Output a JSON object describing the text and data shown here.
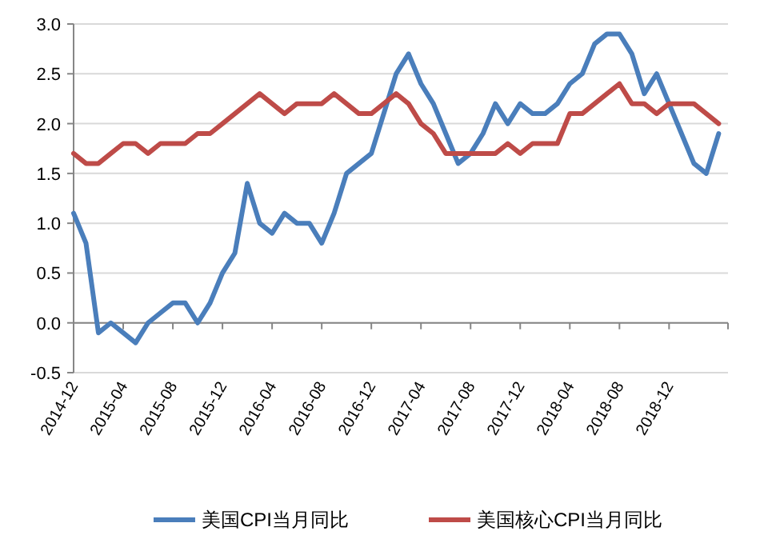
{
  "chart_data": {
    "type": "line",
    "categories": [
      "2014-12",
      null,
      null,
      null,
      "2015-04",
      null,
      null,
      null,
      "2015-08",
      null,
      null,
      null,
      "2015-12",
      null,
      null,
      null,
      "2016-04",
      null,
      null,
      null,
      "2016-08",
      null,
      null,
      null,
      "2016-12",
      null,
      null,
      null,
      "2017-04",
      null,
      null,
      null,
      "2017-08",
      null,
      null,
      null,
      "2017-12",
      null,
      null,
      null,
      "2018-04",
      null,
      null,
      null,
      "2018-08",
      null,
      null,
      null,
      "2018-12",
      null,
      null,
      null,
      null
    ],
    "series": [
      {
        "name": "美国CPI当月同比",
        "color": "#4a7ebb",
        "values": [
          1.1,
          0.8,
          -0.1,
          0.0,
          -0.1,
          -0.2,
          0.0,
          0.1,
          0.2,
          0.2,
          0.0,
          0.2,
          0.5,
          0.7,
          1.4,
          1.0,
          0.9,
          1.1,
          1.0,
          1.0,
          0.8,
          1.1,
          1.5,
          1.6,
          1.7,
          2.1,
          2.5,
          2.7,
          2.4,
          2.2,
          1.9,
          1.6,
          1.7,
          1.9,
          2.2,
          2.0,
          2.2,
          2.1,
          2.1,
          2.2,
          2.4,
          2.5,
          2.8,
          2.9,
          2.9,
          2.7,
          2.3,
          2.5,
          2.2,
          1.9,
          1.6,
          1.5,
          1.9
        ]
      },
      {
        "name": "美国核心CPI当月同比",
        "color": "#be4b48",
        "values": [
          1.7,
          1.6,
          1.6,
          1.7,
          1.8,
          1.8,
          1.7,
          1.8,
          1.8,
          1.8,
          1.9,
          1.9,
          2.0,
          2.1,
          2.2,
          2.3,
          2.2,
          2.1,
          2.2,
          2.2,
          2.2,
          2.3,
          2.2,
          2.1,
          2.1,
          2.2,
          2.3,
          2.2,
          2.0,
          1.9,
          1.7,
          1.7,
          1.7,
          1.7,
          1.7,
          1.8,
          1.7,
          1.8,
          1.8,
          1.8,
          2.1,
          2.1,
          2.2,
          2.3,
          2.4,
          2.2,
          2.2,
          2.1,
          2.2,
          2.2,
          2.2,
          2.1,
          2.0
        ]
      }
    ],
    "ylim": [
      -0.5,
      3.0
    ],
    "yticks": [
      {
        "value": -0.5,
        "label": "-0.5"
      },
      {
        "value": 0,
        "label": "0.0"
      },
      {
        "value": 0.5,
        "label": "0.5"
      },
      {
        "value": 1,
        "label": "1.0"
      },
      {
        "value": 1.5,
        "label": "1.5"
      },
      {
        "value": 2,
        "label": "2.0"
      },
      {
        "value": 2.5,
        "label": "2.5"
      },
      {
        "value": 3,
        "label": "3.0"
      }
    ],
    "grid": "y",
    "legend": "bottom",
    "marker": "none",
    "line_style": "solid"
  }
}
